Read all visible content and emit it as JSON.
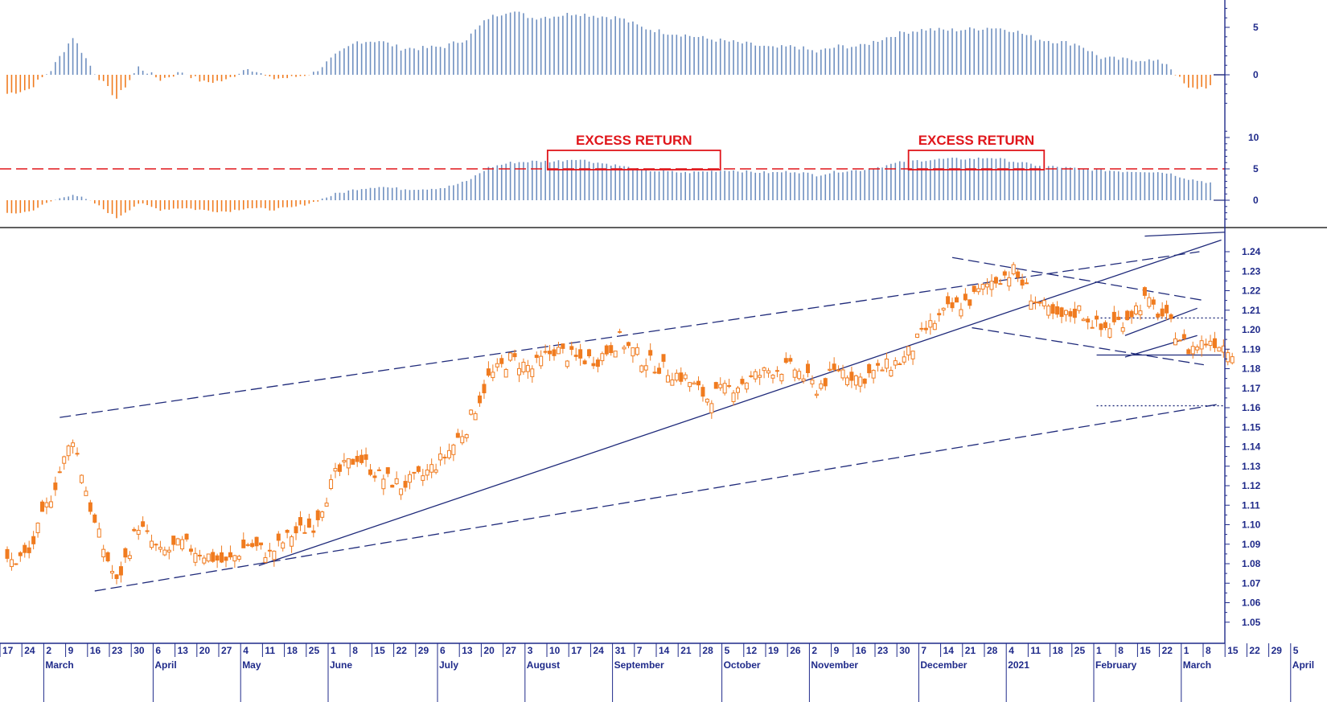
{
  "chart_data": {
    "type": "candlestick",
    "colors": {
      "candle": "#f07b1f",
      "positive_bar": "#6e8fc0",
      "negative_bar": "#f07b1f",
      "trendline": "#1f2a7a",
      "axis": "#1f2a8a",
      "annotation": "#e0161b"
    },
    "price_axis": {
      "ylim": [
        1.05,
        1.245
      ],
      "ticks": [
        "1.24",
        "1.23",
        "1.22",
        "1.21",
        "1.20",
        "1.19",
        "1.18",
        "1.17",
        "1.16",
        "1.15",
        "1.14",
        "1.13",
        "1.12",
        "1.11",
        "1.10",
        "1.09",
        "1.08",
        "1.07",
        "1.06",
        "1.05"
      ]
    },
    "indicator1": {
      "ylim": [
        -4,
        8
      ],
      "ticks": [
        "5",
        "0"
      ]
    },
    "indicator2": {
      "ylim": [
        -4,
        12
      ],
      "ticks": [
        "10",
        "5",
        "0"
      ],
      "threshold": 5
    },
    "x_day_labels": [
      "17",
      "24",
      "2",
      "9",
      "16",
      "23",
      "30",
      "6",
      "13",
      "20",
      "27",
      "4",
      "11",
      "18",
      "25",
      "1",
      "8",
      "15",
      "22",
      "29",
      "6",
      "13",
      "20",
      "27",
      "3",
      "10",
      "17",
      "24",
      "31",
      "7",
      "14",
      "21",
      "28",
      "5",
      "12",
      "19",
      "26",
      "2",
      "9",
      "16",
      "23",
      "30",
      "7",
      "14",
      "21",
      "28",
      "4",
      "11",
      "18",
      "25",
      "1",
      "8",
      "15",
      "22",
      "1",
      "8",
      "15",
      "22",
      "29",
      "5"
    ],
    "x_month_labels": [
      {
        "label": "March",
        "week": 2
      },
      {
        "label": "April",
        "week": 7
      },
      {
        "label": "May",
        "week": 11
      },
      {
        "label": "June",
        "week": 15
      },
      {
        "label": "July",
        "week": 20
      },
      {
        "label": "August",
        "week": 24
      },
      {
        "label": "September",
        "week": 28
      },
      {
        "label": "October",
        "week": 33
      },
      {
        "label": "November",
        "week": 37
      },
      {
        "label": "December",
        "week": 42
      },
      {
        "label": "2021",
        "week": 46
      },
      {
        "label": "February",
        "week": 50
      },
      {
        "label": "March",
        "week": 54
      },
      {
        "label": "April",
        "week": 59
      }
    ],
    "annotations": [
      {
        "text": "EXCESS RETURN",
        "week_start": 24.7,
        "week_end": 32.6
      },
      {
        "text": "EXCESS RETURN",
        "week_start": 41.2,
        "week_end": 47.4
      }
    ],
    "weekly_close": [
      1.08,
      1.085,
      1.115,
      1.145,
      1.1,
      1.07,
      1.1,
      1.085,
      1.09,
      1.085,
      1.08,
      1.09,
      1.085,
      1.095,
      1.1,
      1.125,
      1.135,
      1.125,
      1.12,
      1.125,
      1.135,
      1.15,
      1.175,
      1.185,
      1.18,
      1.19,
      1.185,
      1.185,
      1.195,
      1.185,
      1.18,
      1.175,
      1.165,
      1.17,
      1.175,
      1.18,
      1.18,
      1.17,
      1.18,
      1.175,
      1.18,
      1.185,
      1.2,
      1.21,
      1.215,
      1.225,
      1.23,
      1.215,
      1.205,
      1.21,
      1.2,
      1.205,
      1.215,
      1.205,
      1.19,
      1.195,
      1.19
    ],
    "indicator1_values": [
      -2.0,
      -1.5,
      0.5,
      4.0,
      0.2,
      -2.5,
      0.8,
      -0.5,
      0.3,
      -0.8,
      -0.6,
      0.8,
      -0.4,
      -0.3,
      0.2,
      2.0,
      3.5,
      3.6,
      2.8,
      2.8,
      3.0,
      3.8,
      6.0,
      6.8,
      6.0,
      6.2,
      6.5,
      6.2,
      6.0,
      5.0,
      4.5,
      4.2,
      3.8,
      3.5,
      3.2,
      2.8,
      3.0,
      2.4,
      3.0,
      3.0,
      3.8,
      4.5,
      4.8,
      4.7,
      4.8,
      5.0,
      4.7,
      3.8,
      3.5,
      3.2,
      1.8,
      1.6,
      1.6,
      1.2,
      -1.5,
      -1.2
    ],
    "indicator2_values": [
      -2.2,
      -1.8,
      -0.2,
      1.0,
      -0.5,
      -2.8,
      -0.5,
      -1.5,
      -1.2,
      -1.6,
      -1.8,
      -1.2,
      -1.5,
      -1.2,
      -0.3,
      1.0,
      1.8,
      2.2,
      1.8,
      1.8,
      2.0,
      3.0,
      5.2,
      6.0,
      6.2,
      6.2,
      6.6,
      6.0,
      5.5,
      4.8,
      4.6,
      4.4,
      4.6,
      4.8,
      4.5,
      4.4,
      4.6,
      4.0,
      4.6,
      4.8,
      5.4,
      6.2,
      6.4,
      6.6,
      6.6,
      6.8,
      6.2,
      5.6,
      5.3,
      5.0,
      4.8,
      4.6,
      4.6,
      4.4,
      3.4,
      2.8
    ]
  }
}
